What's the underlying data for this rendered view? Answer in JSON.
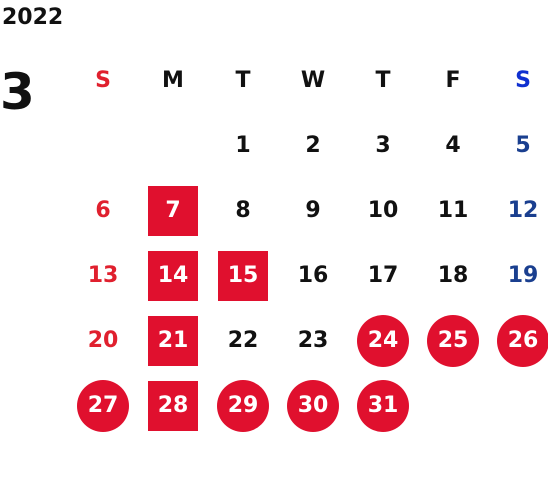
{
  "calendar": {
    "year": "2022",
    "month": "3",
    "weekdays": [
      "S",
      "M",
      "T",
      "W",
      "T",
      "F",
      "S"
    ],
    "weeks": [
      [
        {
          "day": "",
          "style": "empty"
        },
        {
          "day": "",
          "style": "empty"
        },
        {
          "day": "1",
          "style": "normal"
        },
        {
          "day": "2",
          "style": "normal"
        },
        {
          "day": "3",
          "style": "normal"
        },
        {
          "day": "4",
          "style": "normal"
        },
        {
          "day": "5",
          "style": "saturday"
        }
      ],
      [
        {
          "day": "6",
          "style": "sunday"
        },
        {
          "day": "7",
          "style": "square"
        },
        {
          "day": "8",
          "style": "normal"
        },
        {
          "day": "9",
          "style": "normal"
        },
        {
          "day": "10",
          "style": "normal"
        },
        {
          "day": "11",
          "style": "normal"
        },
        {
          "day": "12",
          "style": "saturday"
        }
      ],
      [
        {
          "day": "13",
          "style": "sunday"
        },
        {
          "day": "14",
          "style": "square"
        },
        {
          "day": "15",
          "style": "square"
        },
        {
          "day": "16",
          "style": "normal"
        },
        {
          "day": "17",
          "style": "normal"
        },
        {
          "day": "18",
          "style": "normal"
        },
        {
          "day": "19",
          "style": "saturday"
        }
      ],
      [
        {
          "day": "20",
          "style": "sunday"
        },
        {
          "day": "21",
          "style": "square"
        },
        {
          "day": "22",
          "style": "normal"
        },
        {
          "day": "23",
          "style": "normal"
        },
        {
          "day": "24",
          "style": "circle"
        },
        {
          "day": "25",
          "style": "circle"
        },
        {
          "day": "26",
          "style": "circle"
        }
      ],
      [
        {
          "day": "27",
          "style": "circle"
        },
        {
          "day": "28",
          "style": "square"
        },
        {
          "day": "29",
          "style": "circle"
        },
        {
          "day": "30",
          "style": "circle"
        },
        {
          "day": "31",
          "style": "circle"
        },
        {
          "day": "",
          "style": "empty"
        },
        {
          "day": "",
          "style": "empty"
        }
      ]
    ],
    "colors": {
      "highlight": "#e0102e",
      "sunday": "#e0202e",
      "saturday": "#1a3f8f",
      "saturday_header": "#1030d0",
      "text": "#111111"
    }
  }
}
